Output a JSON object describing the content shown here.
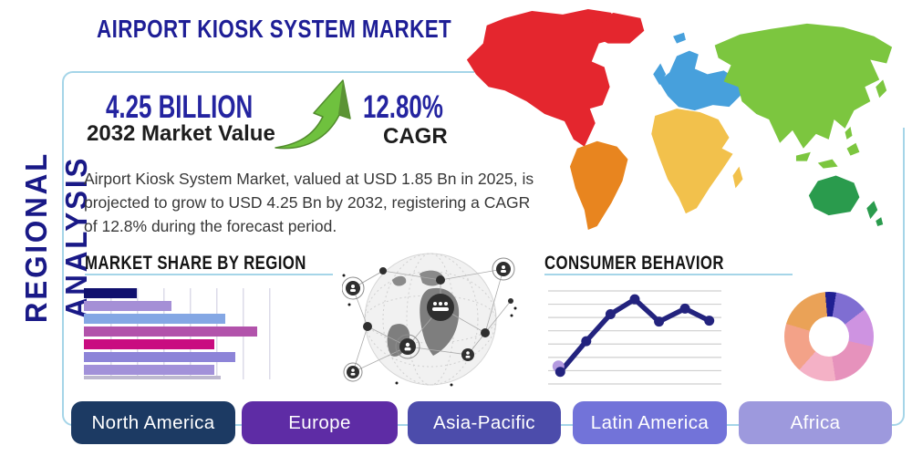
{
  "header": {
    "vertical_title": "REGIONAL ANALYSIS",
    "title": "AIRPORT KIOSK SYSTEM MARKET"
  },
  "highlights": {
    "market_value": {
      "value": "4.25 BILLION",
      "label": "2032 Market Value"
    },
    "cagr": {
      "value": "12.80%",
      "label": "CAGR"
    },
    "growth_arrow_color": "#6fc13e"
  },
  "description": "Airport Kiosk System Market, valued at USD 1.85 Bn in 2025, is projected to grow to USD 4.25 Bn by 2032, registering a CAGR of 12.8% during the forecast period.",
  "chart_data": [
    {
      "type": "bar",
      "title": "MARKET SHARE BY REGION",
      "orientation": "horizontal",
      "values_pct_of_axis": [
        20,
        33,
        53,
        65,
        49,
        57,
        49
      ],
      "bar_colors": [
        "#10106e",
        "#a58fd6",
        "#84a7e4",
        "#b253ab",
        "#c90c80",
        "#8d84d8",
        "#a291d9"
      ],
      "grid": "vertical",
      "note": "bars unlabeled in figure; lengths estimated as percent of plot width"
    },
    {
      "type": "line",
      "title": "CONSUMER BEHAVIOR",
      "x_pct": [
        7,
        22,
        36,
        50,
        64,
        79,
        93
      ],
      "y_pct": [
        13,
        46,
        75,
        91,
        67,
        81,
        68
      ],
      "line_color": "#23237e",
      "marker_color": "#23237e",
      "first_marker_accent": "#b49ae0",
      "grid": "horizontal",
      "note": "axes unlabeled; values estimated as percent of plot area"
    },
    {
      "type": "donut",
      "segments": [
        {
          "color": "#1f1f93",
          "pct": 4
        },
        {
          "color": "#7f6ed2",
          "pct": 12
        },
        {
          "color": "#ce93e1",
          "pct": 14
        },
        {
          "color": "#e692bc",
          "pct": 19
        },
        {
          "color": "#f4b1c6",
          "pct": 14
        },
        {
          "color": "#f3a288",
          "pct": 18
        },
        {
          "color": "#eaa257",
          "pct": 19
        }
      ],
      "note": "segments unlabeled in figure"
    }
  ],
  "map": {
    "regions": [
      {
        "name": "North America",
        "color": "#e4262e"
      },
      {
        "name": "South America",
        "color": "#e8851f"
      },
      {
        "name": "Europe",
        "color": "#47a0dc"
      },
      {
        "name": "Africa",
        "color": "#f2c14c"
      },
      {
        "name": "Asia",
        "color": "#7cc63f"
      },
      {
        "name": "Australia",
        "color": "#2a9b4d"
      }
    ]
  },
  "region_buttons": [
    {
      "label": "North America",
      "color": "#1c3a63"
    },
    {
      "label": "Europe",
      "color": "#5e2ca5"
    },
    {
      "label": "Asia-Pacific",
      "color": "#4c4cab"
    },
    {
      "label": "Latin America",
      "color": "#7273d9"
    },
    {
      "label": "Africa",
      "color": "#9d99dd"
    }
  ],
  "theme": {
    "accent_border": "#a5d5e8",
    "title_navy": "#1e1e96",
    "heading_black": "#141414"
  }
}
